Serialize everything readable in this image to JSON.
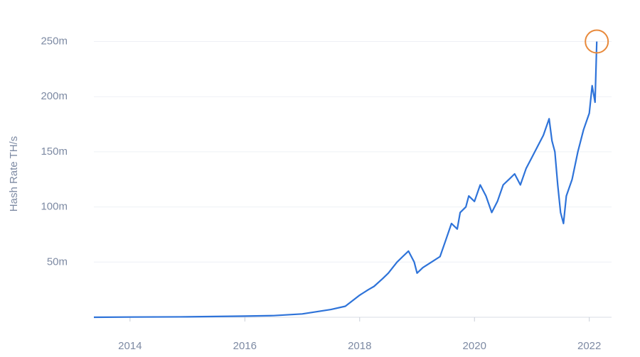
{
  "chart_data": {
    "type": "line",
    "y_label": "Hash Rate TH/s",
    "x": [
      2013.37,
      2014,
      2015,
      2016,
      2016.5,
      2017,
      2017.5,
      2017.75,
      2018,
      2018.15,
      2018.25,
      2018.4,
      2018.5,
      2018.65,
      2018.75,
      2018.85,
      2018.95,
      2019.0,
      2019.1,
      2019.25,
      2019.4,
      2019.5,
      2019.6,
      2019.7,
      2019.75,
      2019.85,
      2019.9,
      2020.0,
      2020.1,
      2020.2,
      2020.3,
      2020.4,
      2020.5,
      2020.6,
      2020.7,
      2020.8,
      2020.9,
      2021.0,
      2021.1,
      2021.2,
      2021.3,
      2021.35,
      2021.4,
      2021.45,
      2021.5,
      2021.55,
      2021.6,
      2021.7,
      2021.8,
      2021.9,
      2022.0,
      2022.05,
      2022.1,
      2022.13
    ],
    "series": [
      {
        "name": "Hash Rate",
        "color": "#2e73d9",
        "values": [
          20000.0,
          200000.0,
          400000.0,
          1000000.0,
          1500000.0,
          3000000.0,
          7000000.0,
          10000000.0,
          20000000.0,
          25000000.0,
          28000000.0,
          35000000.0,
          40000000.0,
          50000000.0,
          55000000.0,
          60000000.0,
          50000000.0,
          40000000.0,
          45000000.0,
          50000000.0,
          55000000.0,
          70000000.0,
          85000000.0,
          80000000.0,
          95000000.0,
          100000000.0,
          110000000.0,
          105000000.0,
          120000000.0,
          110000000.0,
          95000000.0,
          105000000.0,
          120000000.0,
          125000000.0,
          130000000.0,
          120000000.0,
          135000000.0,
          145000000.0,
          155000000.0,
          165000000.0,
          180000000.0,
          160000000.0,
          150000000.0,
          120000000.0,
          95000000.0,
          85000000.0,
          110000000.0,
          125000000.0,
          150000000.0,
          170000000.0,
          185000000.0,
          210000000.0,
          195000000.0,
          250000000.0
        ]
      }
    ],
    "xlim": [
      2013.37,
      2022.14
    ],
    "xticks": [
      2014,
      2016,
      2018,
      2020,
      2022
    ],
    "ylim": [
      0,
      260000000.0
    ],
    "yticks": [
      {
        "value": 50000000.0,
        "label": "50m"
      },
      {
        "value": 100000000.0,
        "label": "100m"
      },
      {
        "value": 150000000.0,
        "label": "150m"
      },
      {
        "value": 200000000.0,
        "label": "200m"
      },
      {
        "value": 250000000.0,
        "label": "250m"
      }
    ],
    "grid": true,
    "highlight_color": "#e8893a"
  }
}
